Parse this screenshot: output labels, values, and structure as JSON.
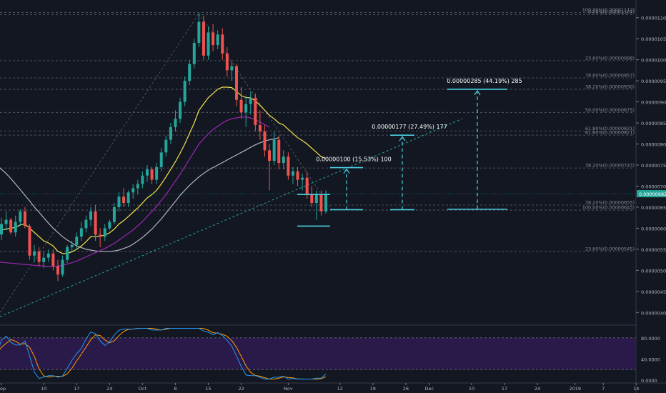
{
  "chart_data": {
    "type": "candlestick",
    "price_axis": {
      "ticks": [
        "0.00001100",
        "0.00001050",
        "0.00001000",
        "0.00000950",
        "0.00000900",
        "0.00000850",
        "0.00000800",
        "0.00000750",
        "0.00000700",
        "0.00000650",
        "0.00000600",
        "0.00000550",
        "0.00000500",
        "0.00000450",
        "0.00000400"
      ],
      "range": [
        3.75e-06,
        1.125e-05
      ],
      "current_price": "0.00000682"
    },
    "x_axis": {
      "ticks": [
        "Sep",
        "10",
        "17",
        "24",
        "Oct",
        "8",
        "15",
        "22",
        "Nov",
        "12",
        "19",
        "26",
        "Dec",
        "10",
        "17",
        "24",
        "2019",
        "7",
        "14"
      ],
      "start": "2018-09-01",
      "last_candle": "2018-11-09"
    },
    "fib_levels": [
      {
        "label": "100.00%(0.00001112)",
        "value": 1.112e-05
      },
      {
        "label": "0.00%(0.00001107)",
        "value": 1.107e-05
      },
      {
        "label": "23.60%(0.00000998)",
        "value": 9.98e-06
      },
      {
        "label": "78.60%(0.00000957)",
        "value": 9.57e-06
      },
      {
        "label": "38.20%(0.00000930)",
        "value": 9.3e-06
      },
      {
        "label": "50.00%(0.00000875)",
        "value": 8.75e-06
      },
      {
        "label": "61.80%(0.00000831)",
        "value": 8.31e-06
      },
      {
        "label": "61.80%(0.00000821)",
        "value": 8.21e-06
      },
      {
        "label": "38.20%(0.00000743)",
        "value": 7.43e-06
      },
      {
        "label": "38.20%(0.00000655)",
        "value": 6.55e-06
      },
      {
        "label": "100.00%(0.00000643)",
        "value": 6.43e-06
      },
      {
        "label": "23.60%(0.00000545)",
        "value": 5.45e-06
      }
    ],
    "targets": [
      {
        "label": "0.00000100 (15.53%) 100",
        "from": 6.44e-06,
        "to": 7.44e-06
      },
      {
        "label": "0.00000177 (27.49%) 177",
        "from": 6.44e-06,
        "to": 8.21e-06
      },
      {
        "label": "0.00000285 (44.19%) 285",
        "from": 6.45e-06,
        "to": 9.3e-06
      }
    ],
    "oscillator": {
      "ticks": [
        "80.0000",
        "40.0000",
        "0.0000"
      ],
      "range": [
        0,
        100
      ],
      "band": [
        20,
        80
      ]
    },
    "candles": [
      {
        "o": 616,
        "h": 630,
        "l": 565,
        "c": 585
      },
      {
        "o": 585,
        "h": 625,
        "l": 572,
        "c": 610
      },
      {
        "o": 610,
        "h": 640,
        "l": 595,
        "c": 620
      },
      {
        "o": 620,
        "h": 625,
        "l": 585,
        "c": 590
      },
      {
        "o": 590,
        "h": 630,
        "l": 580,
        "c": 615
      },
      {
        "o": 615,
        "h": 645,
        "l": 605,
        "c": 640
      },
      {
        "o": 640,
        "h": 650,
        "l": 600,
        "c": 605
      },
      {
        "o": 605,
        "h": 610,
        "l": 525,
        "c": 535
      },
      {
        "o": 535,
        "h": 560,
        "l": 520,
        "c": 545
      },
      {
        "o": 545,
        "h": 555,
        "l": 510,
        "c": 520
      },
      {
        "o": 520,
        "h": 545,
        "l": 505,
        "c": 530
      },
      {
        "o": 530,
        "h": 550,
        "l": 520,
        "c": 540
      },
      {
        "o": 540,
        "h": 550,
        "l": 500,
        "c": 510
      },
      {
        "o": 510,
        "h": 525,
        "l": 475,
        "c": 490
      },
      {
        "o": 490,
        "h": 535,
        "l": 485,
        "c": 525
      },
      {
        "o": 525,
        "h": 560,
        "l": 518,
        "c": 555
      },
      {
        "o": 555,
        "h": 570,
        "l": 545,
        "c": 560
      },
      {
        "o": 560,
        "h": 590,
        "l": 550,
        "c": 580
      },
      {
        "o": 580,
        "h": 615,
        "l": 570,
        "c": 600
      },
      {
        "o": 600,
        "h": 630,
        "l": 590,
        "c": 620
      },
      {
        "o": 620,
        "h": 650,
        "l": 605,
        "c": 640
      },
      {
        "o": 640,
        "h": 655,
        "l": 570,
        "c": 585
      },
      {
        "o": 585,
        "h": 600,
        "l": 555,
        "c": 580
      },
      {
        "o": 580,
        "h": 610,
        "l": 570,
        "c": 600
      },
      {
        "o": 600,
        "h": 620,
        "l": 595,
        "c": 615
      },
      {
        "o": 615,
        "h": 660,
        "l": 610,
        "c": 650
      },
      {
        "o": 650,
        "h": 685,
        "l": 640,
        "c": 675
      },
      {
        "o": 675,
        "h": 695,
        "l": 650,
        "c": 660
      },
      {
        "o": 660,
        "h": 690,
        "l": 650,
        "c": 685
      },
      {
        "o": 685,
        "h": 705,
        "l": 670,
        "c": 695
      },
      {
        "o": 695,
        "h": 715,
        "l": 680,
        "c": 705
      },
      {
        "o": 705,
        "h": 735,
        "l": 695,
        "c": 725
      },
      {
        "o": 725,
        "h": 750,
        "l": 710,
        "c": 740
      },
      {
        "o": 740,
        "h": 745,
        "l": 705,
        "c": 715
      },
      {
        "o": 715,
        "h": 755,
        "l": 705,
        "c": 745
      },
      {
        "o": 745,
        "h": 790,
        "l": 735,
        "c": 780
      },
      {
        "o": 780,
        "h": 820,
        "l": 770,
        "c": 810
      },
      {
        "o": 810,
        "h": 850,
        "l": 800,
        "c": 840
      },
      {
        "o": 840,
        "h": 880,
        "l": 830,
        "c": 860
      },
      {
        "o": 860,
        "h": 910,
        "l": 850,
        "c": 900
      },
      {
        "o": 900,
        "h": 960,
        "l": 890,
        "c": 950
      },
      {
        "o": 950,
        "h": 1000,
        "l": 940,
        "c": 990
      },
      {
        "o": 990,
        "h": 1050,
        "l": 980,
        "c": 1040
      },
      {
        "o": 1040,
        "h": 1110,
        "l": 1030,
        "c": 1090
      },
      {
        "o": 1090,
        "h": 1105,
        "l": 1000,
        "c": 1010
      },
      {
        "o": 1010,
        "h": 1080,
        "l": 1000,
        "c": 1065
      },
      {
        "o": 1065,
        "h": 1085,
        "l": 1020,
        "c": 1035
      },
      {
        "o": 1035,
        "h": 1070,
        "l": 1025,
        "c": 1060
      },
      {
        "o": 1060,
        "h": 1075,
        "l": 1000,
        "c": 1015
      },
      {
        "o": 1015,
        "h": 1030,
        "l": 960,
        "c": 975
      },
      {
        "o": 975,
        "h": 995,
        "l": 950,
        "c": 985
      },
      {
        "o": 985,
        "h": 990,
        "l": 890,
        "c": 905
      },
      {
        "o": 905,
        "h": 935,
        "l": 860,
        "c": 875
      },
      {
        "o": 875,
        "h": 915,
        "l": 840,
        "c": 895
      },
      {
        "o": 895,
        "h": 925,
        "l": 870,
        "c": 910
      },
      {
        "o": 910,
        "h": 920,
        "l": 830,
        "c": 845
      },
      {
        "o": 845,
        "h": 880,
        "l": 810,
        "c": 830
      },
      {
        "o": 830,
        "h": 845,
        "l": 770,
        "c": 785
      },
      {
        "o": 785,
        "h": 800,
        "l": 690,
        "c": 760
      },
      {
        "o": 760,
        "h": 830,
        "l": 750,
        "c": 810
      },
      {
        "o": 810,
        "h": 820,
        "l": 740,
        "c": 755
      },
      {
        "o": 755,
        "h": 785,
        "l": 740,
        "c": 770
      },
      {
        "o": 770,
        "h": 780,
        "l": 715,
        "c": 725
      },
      {
        "o": 725,
        "h": 745,
        "l": 705,
        "c": 735
      },
      {
        "o": 735,
        "h": 745,
        "l": 700,
        "c": 715
      },
      {
        "o": 715,
        "h": 730,
        "l": 690,
        "c": 720
      },
      {
        "o": 720,
        "h": 735,
        "l": 670,
        "c": 680
      },
      {
        "o": 680,
        "h": 700,
        "l": 650,
        "c": 660
      },
      {
        "o": 660,
        "h": 690,
        "l": 620,
        "c": 680
      },
      {
        "o": 680,
        "h": 690,
        "l": 630,
        "c": 640
      },
      {
        "o": 640,
        "h": 690,
        "l": 635,
        "c": 682
      }
    ],
    "ema_fast": [
      600,
      595,
      598,
      600,
      602,
      608,
      610,
      600,
      590,
      580,
      570,
      565,
      558,
      545,
      540,
      540,
      544,
      550,
      558,
      568,
      580,
      580,
      581,
      584,
      589,
      598,
      610,
      618,
      628,
      638,
      648,
      660,
      672,
      680,
      690,
      705,
      722,
      740,
      758,
      778,
      800,
      825,
      850,
      880,
      895,
      910,
      920,
      930,
      935,
      935,
      934,
      925,
      915,
      910,
      910,
      902,
      892,
      880,
      868,
      860,
      850,
      845,
      835,
      825,
      815,
      808,
      800,
      790,
      780,
      770,
      766
    ],
    "ema_mid": [
      520,
      519,
      518,
      517,
      516,
      515,
      514,
      513,
      512,
      511,
      510,
      509,
      509,
      510,
      512,
      515,
      518,
      522,
      527,
      532,
      537,
      542,
      547,
      552,
      558,
      564,
      572,
      580,
      588,
      596,
      606,
      616,
      628,
      640,
      652,
      666,
      680,
      696,
      712,
      728,
      746,
      764,
      782,
      800,
      812,
      824,
      834,
      842,
      850,
      856,
      860,
      862,
      864,
      864,
      862,
      858,
      852,
      846,
      840
    ],
    "sma_slow": [
      750,
      740,
      730,
      718,
      705,
      692,
      678,
      665,
      650,
      638,
      625,
      612,
      600,
      590,
      580,
      572,
      565,
      558,
      554,
      550,
      548,
      546,
      545,
      545,
      545,
      546,
      548,
      552,
      556,
      562,
      570,
      578,
      588,
      598,
      610,
      622,
      636,
      650,
      664,
      678,
      690,
      702,
      712,
      722,
      730,
      738,
      744,
      750,
      756,
      762,
      768,
      774,
      780,
      786,
      792,
      798,
      803,
      807,
      810,
      812,
      815
    ]
  }
}
